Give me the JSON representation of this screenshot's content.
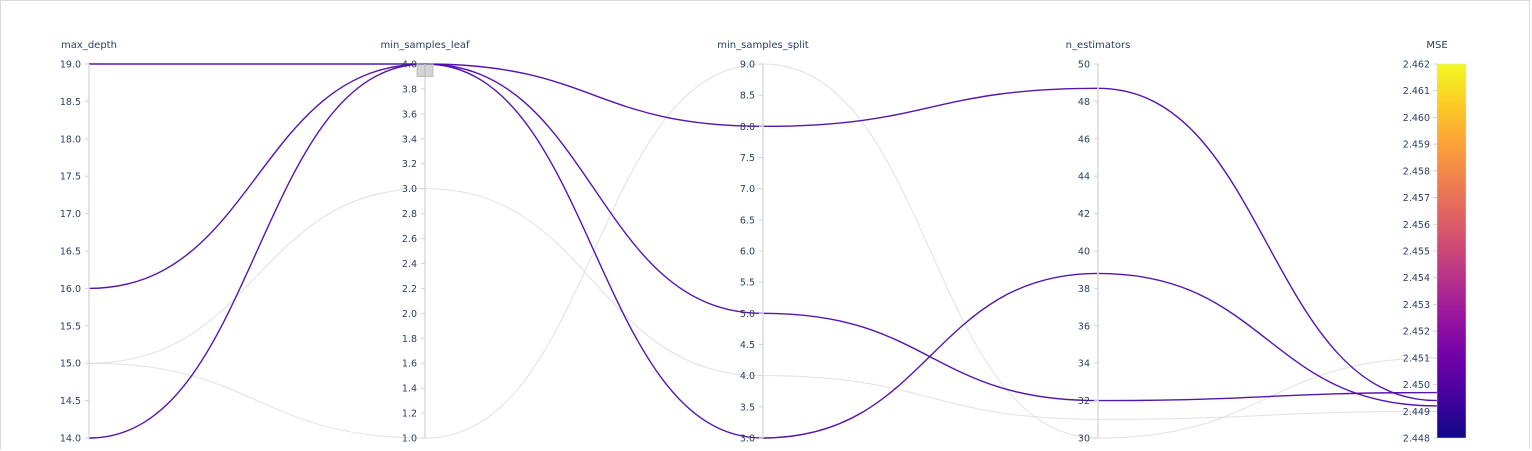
{
  "chart_data": {
    "type": "parallel_coordinates",
    "title": "",
    "axes": [
      {
        "name": "max_depth",
        "range": [
          14,
          19
        ],
        "ticks": [
          "19.0",
          "18.5",
          "18.0",
          "17.5",
          "17.0",
          "16.5",
          "16.0",
          "15.5",
          "15.0",
          "14.5",
          "14.0"
        ],
        "tick_values": [
          19,
          18.5,
          18,
          17.5,
          17,
          16.5,
          16,
          15.5,
          15,
          14.5,
          14
        ]
      },
      {
        "name": "min_samples_leaf",
        "range": [
          1,
          4
        ],
        "ticks": [
          "4.0",
          "3.8",
          "3.6",
          "3.4",
          "3.2",
          "3.0",
          "2.8",
          "2.6",
          "2.4",
          "2.2",
          "2.0",
          "1.8",
          "1.6",
          "1.4",
          "1.2",
          "1.0"
        ],
        "tick_values": [
          4,
          3.8,
          3.6,
          3.4,
          3.2,
          3,
          2.8,
          2.6,
          2.4,
          2.2,
          2,
          1.8,
          1.6,
          1.4,
          1.2,
          1
        ],
        "constraint_range": [
          3.9,
          4.0
        ]
      },
      {
        "name": "min_samples_split",
        "range": [
          3,
          9
        ],
        "ticks": [
          "9.0",
          "8.5",
          "8.0",
          "7.5",
          "7.0",
          "6.5",
          "6.0",
          "5.5",
          "5.0",
          "4.5",
          "4.0",
          "3.5",
          "3.0"
        ],
        "tick_values": [
          9,
          8.5,
          8,
          7.5,
          7,
          6.5,
          6,
          5.5,
          5,
          4.5,
          4,
          3.5,
          3
        ]
      },
      {
        "name": "n_estimators",
        "range": [
          30,
          50
        ],
        "ticks": [
          "50",
          "48",
          "46",
          "44",
          "42",
          "40",
          "38",
          "36",
          "34",
          "32",
          "30"
        ],
        "tick_values": [
          50,
          48,
          46,
          44,
          42,
          40,
          38,
          36,
          34,
          32,
          30
        ]
      }
    ],
    "colorbar": {
      "name": "MSE",
      "range": [
        2.448,
        2.462
      ],
      "ticks": [
        "2.462",
        "2.461",
        "2.460",
        "2.459",
        "2.458",
        "2.457",
        "2.456",
        "2.455",
        "2.454",
        "2.453",
        "2.452",
        "2.451",
        "2.450",
        "2.449",
        "2.448"
      ],
      "tick_values": [
        2.462,
        2.461,
        2.46,
        2.459,
        2.458,
        2.457,
        2.456,
        2.455,
        2.454,
        2.453,
        2.452,
        2.451,
        2.45,
        2.449,
        2.448
      ],
      "colorscale": [
        "#0d0887",
        "#46039f",
        "#7201a8",
        "#9c179e",
        "#bd3786",
        "#d8576b",
        "#ed7953",
        "#fb9f3a",
        "#fdca26",
        "#f0f921"
      ]
    },
    "lines": [
      {
        "values": [
          19,
          4,
          8,
          48.7
        ],
        "mse": 2.4494,
        "active": true
      },
      {
        "values": [
          16,
          4,
          5,
          32
        ],
        "mse": 2.4497,
        "active": true
      },
      {
        "values": [
          14,
          4,
          3,
          38.8
        ],
        "mse": 2.4492,
        "active": true
      },
      {
        "values": [
          15,
          3,
          4,
          31
        ],
        "mse": 2.449,
        "active": false
      },
      {
        "values": [
          15,
          1,
          9,
          30
        ],
        "mse": 2.451,
        "active": false
      }
    ],
    "colors": {
      "active_line": "#4d09a6",
      "inactive_line": "#d9d9d9"
    }
  }
}
